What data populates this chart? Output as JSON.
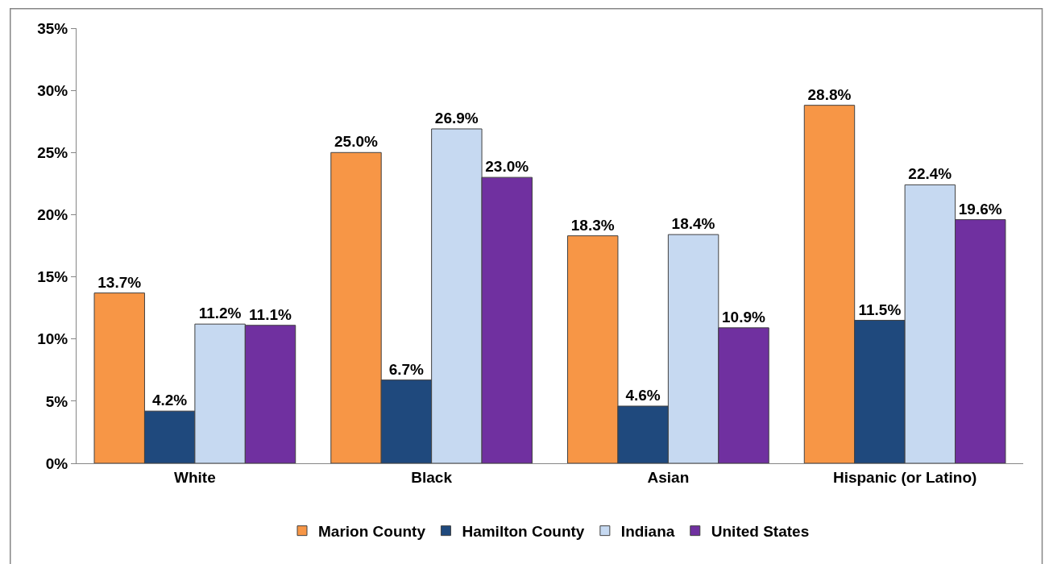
{
  "chart_data": {
    "type": "bar",
    "categories": [
      "White",
      "Black",
      "Asian",
      "Hispanic (or Latino)"
    ],
    "series": [
      {
        "name": "Marion County",
        "color": "#f79646",
        "values": [
          13.7,
          25.0,
          18.3,
          28.8
        ],
        "value_labels": [
          "13.7%",
          "25.0%",
          "18.3%",
          "28.8%"
        ]
      },
      {
        "name": "Hamilton County",
        "color": "#1f497d",
        "values": [
          4.2,
          6.7,
          4.6,
          11.5
        ],
        "value_labels": [
          "4.2%",
          "6.7%",
          "4.6%",
          "11.5%"
        ]
      },
      {
        "name": "Indiana",
        "color": "#c6d9f1",
        "values": [
          11.2,
          26.9,
          18.4,
          22.4
        ],
        "value_labels": [
          "11.2%",
          "26.9%",
          "18.4%",
          "22.4%"
        ]
      },
      {
        "name": "United States",
        "color": "#7030a0",
        "values": [
          11.1,
          23.0,
          10.9,
          19.6
        ],
        "value_labels": [
          "11.1%",
          "23.0%",
          "10.9%",
          "19.6%"
        ]
      }
    ],
    "ylim": [
      0,
      35
    ],
    "yticks": [
      {
        "value": 0,
        "label": "0%"
      },
      {
        "value": 5,
        "label": "5%"
      },
      {
        "value": 10,
        "label": "10%"
      },
      {
        "value": 15,
        "label": "15%"
      },
      {
        "value": 20,
        "label": "20%"
      },
      {
        "value": 25,
        "label": "25%"
      },
      {
        "value": 30,
        "label": "30%"
      },
      {
        "value": 35,
        "label": "35%"
      }
    ],
    "legend": "bottom"
  }
}
